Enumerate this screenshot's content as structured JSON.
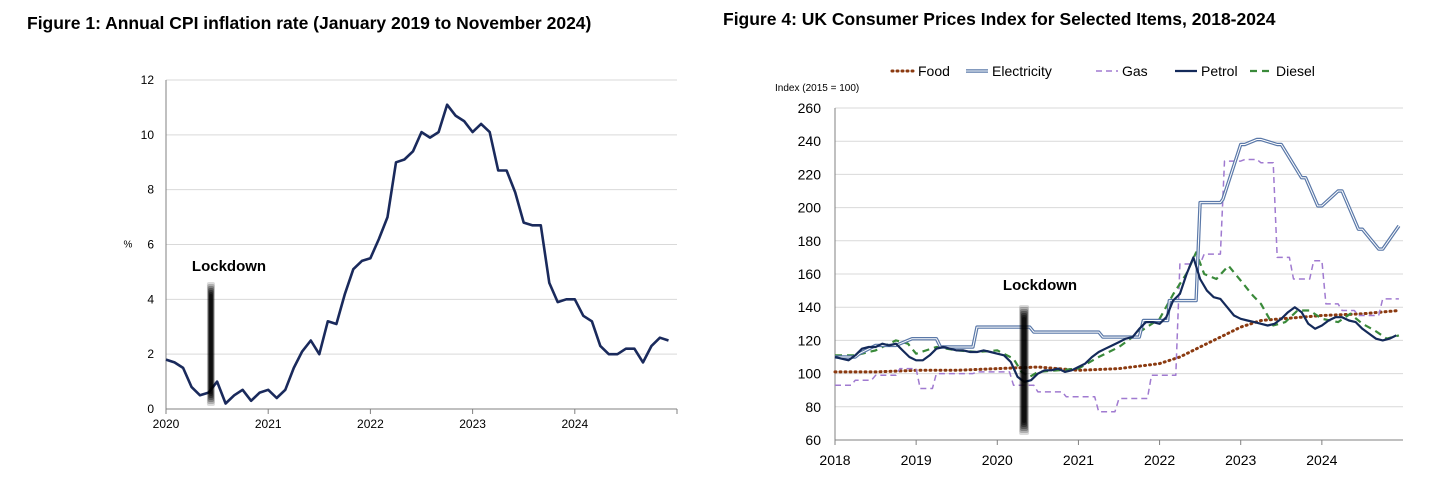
{
  "fig1": {
    "title": "Figure 1: Annual CPI inflation rate (January 2019 to November 2024)"
  },
  "fig4": {
    "title": "Figure 4: UK Consumer Prices Index for Selected Items, 2018-2024"
  },
  "colors": {
    "navy": "#1a2a5c",
    "food": "#8b3a10",
    "electricity": "#5a78a8",
    "gas": "#a07ad0",
    "petrol": "#142a5a",
    "diesel": "#3a8a3a",
    "grid": "#d9d9d9",
    "axis": "#808080"
  },
  "chart_data": [
    {
      "type": "line",
      "title": "Figure 1: Annual CPI inflation rate (January 2019 to November 2024)",
      "ylabel": "%",
      "xlabel": "",
      "ylim": [
        0,
        12
      ],
      "yticks": [
        0,
        2,
        4,
        6,
        8,
        10,
        12
      ],
      "xlim": [
        2020,
        2025
      ],
      "xticks": [
        "2020",
        "2021",
        "2022",
        "2023",
        "2024"
      ],
      "grid": true,
      "annotations": [
        {
          "text": "Lockdown",
          "x": 2020.42
        }
      ],
      "series": [
        {
          "x": [
            2020.0,
            2020.083,
            2020.167,
            2020.25,
            2020.333,
            2020.417,
            2020.5,
            2020.583,
            2020.667,
            2020.75,
            2020.833,
            2020.917,
            2021.0,
            2021.083,
            2021.167,
            2021.25,
            2021.333,
            2021.417,
            2021.5,
            2021.583,
            2021.667,
            2021.75,
            2021.833,
            2021.917,
            2022.0,
            2022.083,
            2022.167,
            2022.25,
            2022.333,
            2022.417,
            2022.5,
            2022.583,
            2022.667,
            2022.75,
            2022.833,
            2022.917,
            2023.0,
            2023.083,
            2023.167,
            2023.25,
            2023.333,
            2023.417,
            2023.5,
            2023.583,
            2023.667,
            2023.75,
            2023.833,
            2023.917,
            2024.0,
            2024.083,
            2024.167,
            2024.25,
            2024.333,
            2024.417,
            2024.5,
            2024.583,
            2024.667,
            2024.75,
            2024.833,
            2024.917
          ],
          "values": [
            1.8,
            1.7,
            1.5,
            0.8,
            0.5,
            0.6,
            1.0,
            0.2,
            0.5,
            0.7,
            0.3,
            0.6,
            0.7,
            0.4,
            0.7,
            1.5,
            2.1,
            2.5,
            2.0,
            3.2,
            3.1,
            4.2,
            5.1,
            5.4,
            5.5,
            6.2,
            7.0,
            9.0,
            9.1,
            9.4,
            10.1,
            9.9,
            10.1,
            11.1,
            10.7,
            10.5,
            10.1,
            10.4,
            10.1,
            8.7,
            8.7,
            7.9,
            6.8,
            6.7,
            6.7,
            4.6,
            3.9,
            4.0,
            4.0,
            3.4,
            3.2,
            2.3,
            2.0,
            2.0,
            2.2,
            2.2,
            1.7,
            2.3,
            2.6,
            2.5
          ]
        }
      ]
    },
    {
      "type": "line",
      "title": "Figure 4: UK Consumer Prices Index for Selected Items, 2018-2024",
      "ylabel": "Index (2015 = 100)",
      "xlabel": "",
      "ylim": [
        60,
        260
      ],
      "yticks": [
        60,
        80,
        100,
        120,
        140,
        160,
        180,
        200,
        220,
        240,
        260
      ],
      "xlim": [
        2018,
        2025
      ],
      "xticks": [
        "2018",
        "2019",
        "2020",
        "2021",
        "2022",
        "2023",
        "2024"
      ],
      "grid": true,
      "legend": "top",
      "annotations": [
        {
          "text": "Lockdown",
          "x": 2020.33
        }
      ],
      "series": [
        {
          "name": "Food",
          "x": [
            2018,
            2018.5,
            2019,
            2019.5,
            2020,
            2020.5,
            2021,
            2021.5,
            2022,
            2022.25,
            2022.5,
            2022.75,
            2023,
            2023.25,
            2023.5,
            2023.75,
            2024,
            2024.5,
            2024.95
          ],
          "values": [
            101,
            101,
            102,
            102,
            103,
            104,
            102,
            103,
            106,
            110,
            116,
            122,
            128,
            132,
            133,
            134,
            135,
            136,
            138
          ]
        },
        {
          "name": "Electricity",
          "x": [
            2018,
            2018.25,
            2018.3,
            2018.5,
            2018.75,
            2018.95,
            2019,
            2019.25,
            2019.3,
            2019.7,
            2019.75,
            2020.4,
            2020.45,
            2020.75,
            2020.8,
            2021.25,
            2021.3,
            2021.75,
            2021.8,
            2022.1,
            2022.12,
            2022.45,
            2022.5,
            2022.75,
            2022.78,
            2023.0,
            2023.05,
            2023.2,
            2023.25,
            2023.45,
            2023.5,
            2023.75,
            2023.8,
            2023.95,
            2024.0,
            2024.2,
            2024.25,
            2024.45,
            2024.5,
            2024.7,
            2024.75,
            2024.95
          ],
          "values": [
            110,
            110,
            112,
            117,
            117,
            121,
            121,
            121,
            116,
            116,
            128,
            128,
            125,
            125,
            125,
            125,
            122,
            122,
            132,
            132,
            144,
            144,
            203,
            203,
            205,
            238,
            238,
            241,
            241,
            238,
            238,
            218,
            218,
            201,
            201,
            210,
            210,
            187,
            187,
            175,
            175,
            189
          ]
        },
        {
          "name": "Gas",
          "x": [
            2018,
            2018.2,
            2018.25,
            2018.45,
            2018.5,
            2018.75,
            2018.8,
            2019.0,
            2019.05,
            2019.2,
            2019.25,
            2019.7,
            2019.75,
            2020.15,
            2020.2,
            2020.45,
            2020.5,
            2020.8,
            2020.85,
            2021.2,
            2021.25,
            2021.45,
            2021.5,
            2021.85,
            2021.9,
            2022.2,
            2022.25,
            2022.5,
            2022.55,
            2022.75,
            2022.8,
            2023.0,
            2023.05,
            2023.2,
            2023.25,
            2023.4,
            2023.45,
            2023.6,
            2023.65,
            2023.85,
            2023.9,
            2024.0,
            2024.05,
            2024.2,
            2024.25,
            2024.4,
            2024.45,
            2024.7,
            2024.75,
            2024.95
          ],
          "values": [
            93,
            93,
            96,
            96,
            99,
            99,
            103,
            103,
            91,
            91,
            100,
            100,
            101,
            101,
            93,
            93,
            89,
            89,
            86,
            86,
            77,
            77,
            85,
            85,
            99,
            99,
            166,
            166,
            172,
            172,
            228,
            228,
            229,
            229,
            227,
            227,
            170,
            170,
            157,
            157,
            168,
            168,
            142,
            142,
            138,
            138,
            135,
            135,
            145,
            145
          ]
        },
        {
          "name": "Petrol",
          "x": [
            2018.0,
            2018.083,
            2018.167,
            2018.25,
            2018.333,
            2018.417,
            2018.5,
            2018.583,
            2018.667,
            2018.75,
            2018.833,
            2018.917,
            2019.0,
            2019.083,
            2019.167,
            2019.25,
            2019.333,
            2019.417,
            2019.5,
            2019.583,
            2019.667,
            2019.75,
            2019.833,
            2019.917,
            2020.0,
            2020.083,
            2020.167,
            2020.25,
            2020.333,
            2020.417,
            2020.5,
            2020.583,
            2020.667,
            2020.75,
            2020.833,
            2020.917,
            2021.0,
            2021.083,
            2021.167,
            2021.25,
            2021.333,
            2021.417,
            2021.5,
            2021.583,
            2021.667,
            2021.75,
            2021.833,
            2021.917,
            2022.0,
            2022.083,
            2022.167,
            2022.25,
            2022.333,
            2022.417,
            2022.5,
            2022.583,
            2022.667,
            2022.75,
            2022.833,
            2022.917,
            2023.0,
            2023.083,
            2023.167,
            2023.25,
            2023.333,
            2023.417,
            2023.5,
            2023.583,
            2023.667,
            2023.75,
            2023.833,
            2023.917,
            2024.0,
            2024.083,
            2024.167,
            2024.25,
            2024.333,
            2024.417,
            2024.5,
            2024.583,
            2024.667,
            2024.75,
            2024.833,
            2024.917
          ],
          "values": [
            110,
            109,
            108,
            111,
            115,
            116,
            116,
            118,
            117,
            118,
            114,
            110,
            108,
            108,
            111,
            115,
            116,
            115,
            114,
            114,
            113,
            113,
            114,
            113,
            112,
            111,
            107,
            98,
            95,
            96,
            100,
            102,
            102,
            103,
            101,
            102,
            104,
            106,
            110,
            113,
            115,
            117,
            119,
            121,
            122,
            127,
            131,
            131,
            130,
            134,
            144,
            148,
            160,
            170,
            157,
            150,
            146,
            145,
            140,
            135,
            133,
            132,
            131,
            130,
            129,
            130,
            133,
            137,
            140,
            137,
            130,
            127,
            129,
            132,
            134,
            134,
            132,
            131,
            127,
            124,
            121,
            120,
            121,
            123
          ]
        },
        {
          "name": "Diesel",
          "x": [
            2018.0,
            2018.25,
            2018.5,
            2018.75,
            2018.9,
            2019.0,
            2019.25,
            2019.5,
            2019.75,
            2020.0,
            2020.2,
            2020.3,
            2020.4,
            2020.5,
            2020.75,
            2021.0,
            2021.25,
            2021.5,
            2021.75,
            2022.0,
            2022.17,
            2022.33,
            2022.45,
            2022.55,
            2022.7,
            2022.85,
            2023.0,
            2023.15,
            2023.25,
            2023.4,
            2023.55,
            2023.7,
            2023.85,
            2024.0,
            2024.2,
            2024.35,
            2024.5,
            2024.65,
            2024.8,
            2024.95
          ],
          "values": [
            111,
            111,
            114,
            120,
            118,
            112,
            116,
            114,
            113,
            114,
            109,
            101,
            98,
            101,
            102,
            103,
            110,
            116,
            125,
            133,
            148,
            160,
            173,
            160,
            157,
            165,
            156,
            147,
            142,
            129,
            131,
            138,
            138,
            133,
            131,
            136,
            130,
            126,
            121,
            123
          ]
        }
      ]
    }
  ]
}
